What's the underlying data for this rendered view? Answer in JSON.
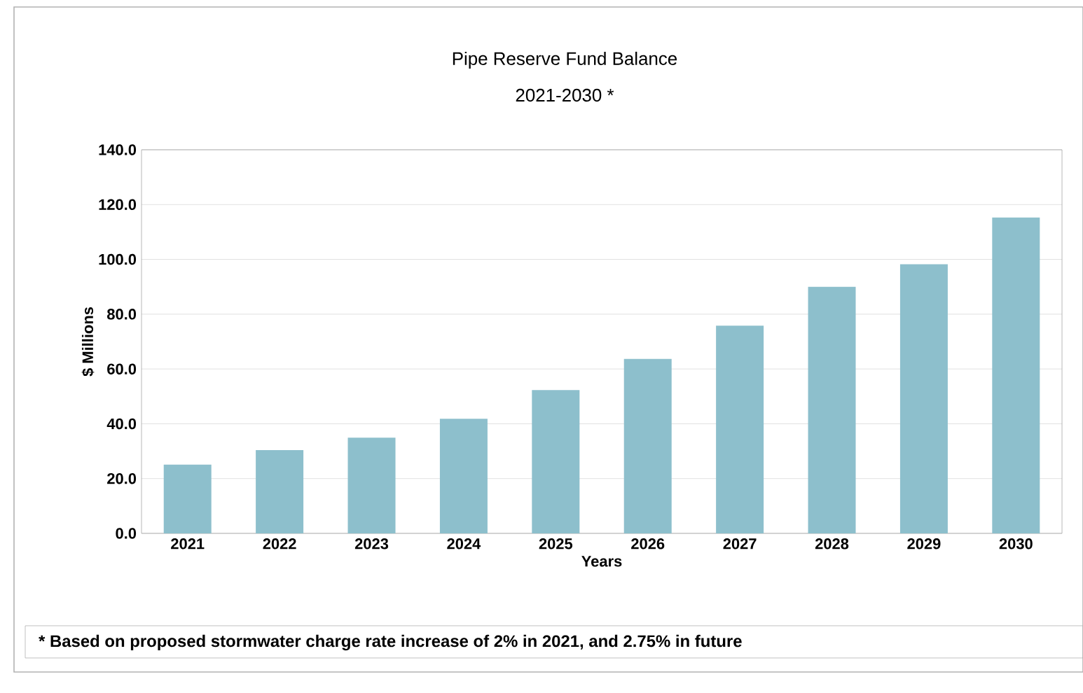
{
  "chart_data": {
    "type": "bar",
    "title": "Pipe Reserve Fund Balance",
    "subtitle": "2021-2030 *",
    "xlabel": "Years",
    "ylabel": "$ Millions",
    "categories": [
      "2021",
      "2022",
      "2023",
      "2024",
      "2025",
      "2026",
      "2027",
      "2028",
      "2029",
      "2030"
    ],
    "values": [
      25.1,
      30.4,
      34.9,
      41.8,
      52.3,
      63.7,
      75.8,
      90.0,
      98.2,
      115.3
    ],
    "color": "#8dbfcc",
    "ylim": [
      0,
      140
    ],
    "yticks": [
      {
        "value": 0,
        "label": "0.0"
      },
      {
        "value": 20,
        "label": "20.0"
      },
      {
        "value": 40,
        "label": "40.0"
      },
      {
        "value": 60,
        "label": "60.0"
      },
      {
        "value": 80,
        "label": "80.0"
      },
      {
        "value": 100,
        "label": "100.0"
      },
      {
        "value": 120,
        "label": "120.0"
      },
      {
        "value": 140,
        "label": "140.0"
      }
    ],
    "grid": "y",
    "annotations": [
      "* Based on proposed stormwater charge rate increase of 2% in 2021, and 2.75% in future"
    ]
  }
}
